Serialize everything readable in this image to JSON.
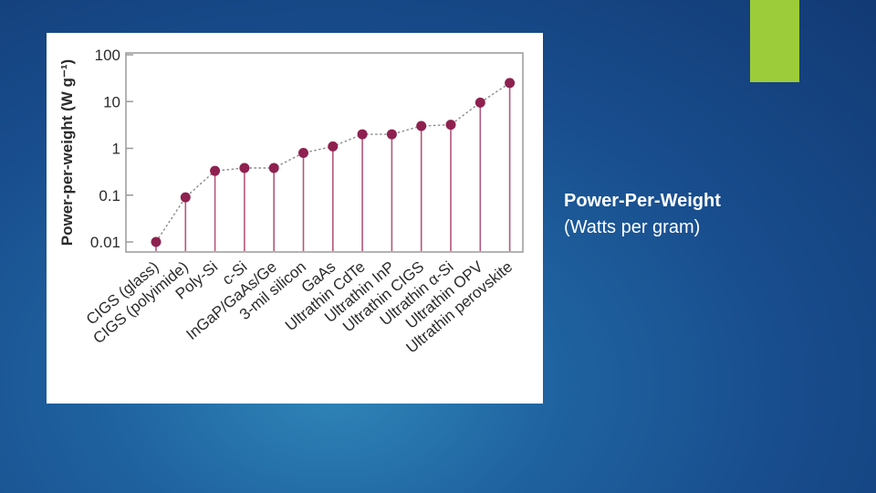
{
  "slide": {
    "title": "Power-Per-Weight",
    "subtitle": "(Watts per gram)",
    "accent_color": "#9ccc3a"
  },
  "chart_data": {
    "type": "scatter",
    "ylabel": "Power-per-weight (W g⁻¹)",
    "yscale": "log",
    "ylim": [
      0.01,
      100
    ],
    "yticks": [
      "100",
      "10",
      "1",
      "0.1",
      "0.01"
    ],
    "categories": [
      "CIGS (glass)",
      "CIGS (polyimide)",
      "Poly-Si",
      "c-Si",
      "InGaP/GaAs/Ge",
      "3-mil silicon",
      "GaAs",
      "Ultrathin CdTe",
      "Ultrathin InP",
      "Ultrathin CIGS",
      "Ultrathin α-Si",
      "Ultrathin OPV",
      "Ultrathin perovskite"
    ],
    "values": [
      0.01,
      0.09,
      0.33,
      0.38,
      0.38,
      0.8,
      1.1,
      2.0,
      2.0,
      3.0,
      3.2,
      9.5,
      25
    ],
    "marker_color": "#8e2150",
    "stem_color": "#b4577a",
    "line_style": "dotted",
    "grid": false
  }
}
